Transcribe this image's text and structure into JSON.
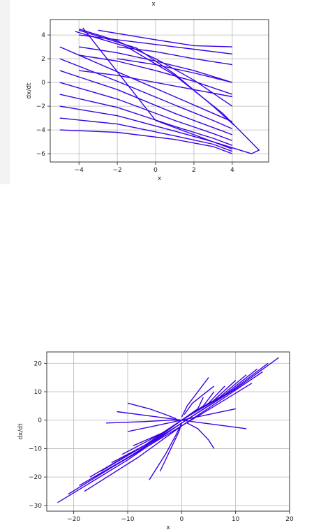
{
  "top_caption": "x",
  "chart_data": [
    {
      "type": "line",
      "title": "",
      "xlabel": "x",
      "ylabel": "dx/dt",
      "xlim": [
        -5.5,
        5.9
      ],
      "ylim": [
        -6.7,
        5.3
      ],
      "xticks": [
        "−4",
        "−2",
        "0",
        "2",
        "4"
      ],
      "yticks": [
        "4",
        "2",
        "0",
        "−2",
        "−4",
        "−6"
      ],
      "grid": true,
      "line_color": "#3a00e6",
      "series": [
        {
          "x": [
            -5,
            -2,
            1,
            3,
            4
          ],
          "y": [
            3.0,
            0.9,
            -1.2,
            -2.6,
            -3.3
          ]
        },
        {
          "x": [
            -5,
            -2,
            1,
            3,
            4
          ],
          "y": [
            2.0,
            0.1,
            -1.9,
            -3.2,
            -3.9
          ]
        },
        {
          "x": [
            -5,
            -2,
            1,
            3,
            4
          ],
          "y": [
            1.0,
            -0.6,
            -2.6,
            -3.8,
            -4.4
          ]
        },
        {
          "x": [
            -5,
            -2,
            1,
            3,
            4
          ],
          "y": [
            0.0,
            -1.4,
            -3.2,
            -4.3,
            -4.9
          ]
        },
        {
          "x": [
            -5,
            -2,
            1,
            3,
            4
          ],
          "y": [
            -1.0,
            -2.1,
            -3.7,
            -4.7,
            -5.3
          ]
        },
        {
          "x": [
            -5,
            -2,
            1,
            3,
            4
          ],
          "y": [
            -2.0,
            -2.8,
            -4.1,
            -5.0,
            -5.6
          ]
        },
        {
          "x": [
            -5,
            -2,
            1,
            3,
            4
          ],
          "y": [
            -3.0,
            -3.5,
            -4.5,
            -5.2,
            -5.8
          ]
        },
        {
          "x": [
            -5,
            -2,
            1,
            3,
            4
          ],
          "y": [
            -4.0,
            -4.2,
            -4.8,
            -5.4,
            -6.0
          ]
        },
        {
          "x": [
            -4,
            -2,
            0,
            2,
            4
          ],
          "y": [
            4.5,
            3.5,
            2.0,
            0.2,
            -2.0
          ]
        },
        {
          "x": [
            -4,
            -2,
            0,
            2,
            4
          ],
          "y": [
            2.3,
            1.8,
            1.0,
            0.1,
            -1.0
          ]
        },
        {
          "x": [
            -4,
            -2,
            0,
            2,
            4
          ],
          "y": [
            1.0,
            0.6,
            0.0,
            -0.6,
            -1.2
          ]
        },
        {
          "x": [
            -4,
            -2,
            0,
            2,
            4
          ],
          "y": [
            3.0,
            2.5,
            1.8,
            1.0,
            0.0
          ]
        },
        {
          "x": [
            -4,
            -2,
            0,
            2,
            4
          ],
          "y": [
            4.0,
            3.6,
            3.2,
            2.8,
            2.4
          ]
        },
        {
          "x": [
            -3,
            0,
            2,
            4
          ],
          "y": [
            4.4,
            3.6,
            3.1,
            3.0
          ]
        },
        {
          "x": [
            -2,
            0,
            2,
            4
          ],
          "y": [
            3.0,
            2.6,
            2.0,
            1.5
          ]
        },
        {
          "x": [
            -2,
            0,
            2,
            4
          ],
          "y": [
            2.0,
            1.5,
            0.8,
            0.0
          ]
        },
        {
          "x": [
            -4,
            -1,
            1,
            3,
            4.1
          ],
          "y": [
            4.4,
            2.9,
            0.7,
            -2.0,
            -3.6
          ]
        },
        {
          "x": [
            -4.2,
            -1.5,
            1,
            3.5,
            5.4,
            5.0,
            3.0,
            0.0,
            -3.8
          ],
          "y": [
            4.3,
            3.0,
            0.6,
            -2.6,
            -5.7,
            -6.0,
            -5.0,
            -3.2,
            4.6
          ]
        }
      ]
    },
    {
      "type": "line",
      "title": "",
      "xlabel": "x",
      "ylabel": "dx/dt",
      "xlim": [
        -25,
        20
      ],
      "ylim": [
        -32,
        24
      ],
      "xticks": [
        "−20",
        "−10",
        "0",
        "10",
        "20"
      ],
      "yticks": [
        "20",
        "10",
        "0",
        "−10",
        "−20",
        "−30"
      ],
      "grid": true,
      "line_color": "#3a00e6",
      "series": [
        {
          "x": [
            -23,
            -10,
            0,
            10,
            18
          ],
          "y": [
            -29,
            -14,
            -1,
            11,
            22
          ]
        },
        {
          "x": [
            -21,
            -9,
            0,
            9,
            16
          ],
          "y": [
            -26,
            -12,
            -1,
            10,
            20
          ]
        },
        {
          "x": [
            -19,
            -8,
            0,
            8,
            14
          ],
          "y": [
            -23,
            -11,
            0,
            9,
            18
          ]
        },
        {
          "x": [
            -17,
            -7,
            0,
            7,
            12
          ],
          "y": [
            -20,
            -9,
            0,
            8,
            16
          ]
        },
        {
          "x": [
            -15,
            -6,
            0,
            6,
            10
          ],
          "y": [
            -18,
            -8,
            0,
            7,
            14
          ]
        },
        {
          "x": [
            -13,
            -5,
            0,
            5,
            8
          ],
          "y": [
            -15,
            -7,
            0,
            6,
            12
          ]
        },
        {
          "x": [
            -11,
            -4,
            0,
            4,
            6
          ],
          "y": [
            -12,
            -5,
            0,
            5,
            10
          ]
        },
        {
          "x": [
            -9,
            -3,
            0,
            3,
            4
          ],
          "y": [
            -9,
            -4,
            0,
            4,
            8
          ]
        },
        {
          "x": [
            -18,
            -8,
            0,
            8,
            15
          ],
          "y": [
            -25,
            -13,
            -2,
            8,
            17
          ]
        },
        {
          "x": [
            -16,
            -7,
            0,
            7,
            13
          ],
          "y": [
            -20,
            -10,
            -2,
            6,
            13
          ]
        },
        {
          "x": [
            -10,
            -5,
            0,
            5,
            10
          ],
          "y": [
            -4,
            -2,
            0,
            2,
            4
          ]
        },
        {
          "x": [
            -12,
            -6,
            -2,
            0
          ],
          "y": [
            3,
            1.5,
            0.5,
            0
          ]
        },
        {
          "x": [
            0,
            2,
            6,
            12
          ],
          "y": [
            0,
            -0.5,
            -1.5,
            -3
          ]
        },
        {
          "x": [
            -14,
            -7,
            -2,
            0
          ],
          "y": [
            -1,
            -0.5,
            0,
            0
          ]
        },
        {
          "x": [
            -6,
            -3,
            -1,
            0
          ],
          "y": [
            -21,
            -12,
            -5,
            -1
          ]
        },
        {
          "x": [
            0,
            1,
            3,
            5
          ],
          "y": [
            1,
            5,
            10,
            15
          ]
        },
        {
          "x": [
            -10,
            -6,
            -3,
            -1
          ],
          "y": [
            6,
            4,
            2,
            0.5
          ]
        },
        {
          "x": [
            1,
            3,
            5,
            6
          ],
          "y": [
            -1,
            -3,
            -7,
            -10
          ]
        },
        {
          "x": [
            -4,
            -2,
            -0.5,
            0
          ],
          "y": [
            -18,
            -10,
            -4,
            -1
          ]
        },
        {
          "x": [
            0.5,
            2,
            4,
            6
          ],
          "y": [
            2,
            6,
            9,
            12
          ]
        }
      ]
    }
  ]
}
